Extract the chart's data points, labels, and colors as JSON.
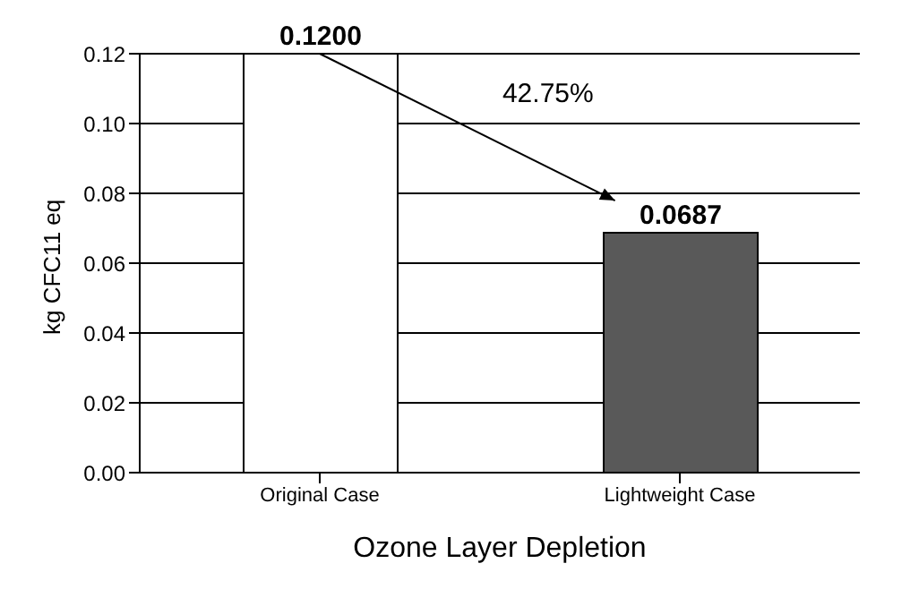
{
  "chart_data": {
    "type": "bar",
    "xlabel": "Ozone Layer Depletion",
    "ylabel": "kg CFC11 eq",
    "categories": [
      "Original Case",
      "Lightweight Case"
    ],
    "values": [
      0.12,
      0.0687
    ],
    "colors": [
      "#ffffff",
      "#595959"
    ],
    "value_labels": [
      "0.1200",
      "0.0687"
    ],
    "ylim": [
      0,
      0.12
    ],
    "yticks": [
      {
        "value": 0,
        "label": "0.00"
      },
      {
        "value": 0.02,
        "label": "0.02"
      },
      {
        "value": 0.04,
        "label": "0.04"
      },
      {
        "value": 0.06,
        "label": "0.06"
      },
      {
        "value": 0.08,
        "label": "0.08"
      },
      {
        "value": 0.1,
        "label": "0.10"
      },
      {
        "value": 0.12,
        "label": "0.12"
      }
    ],
    "grid": "y",
    "annotations": [
      "42.75%"
    ]
  }
}
